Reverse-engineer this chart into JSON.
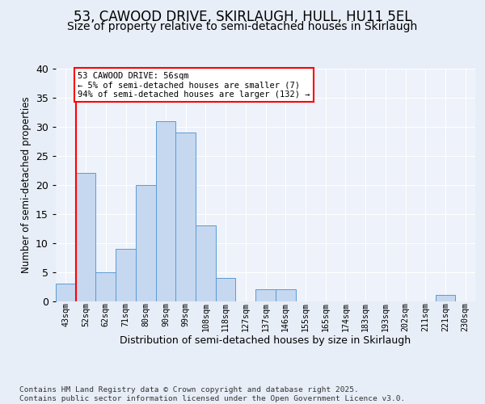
{
  "title1": "53, CAWOOD DRIVE, SKIRLAUGH, HULL, HU11 5EL",
  "title2": "Size of property relative to semi-detached houses in Skirlaugh",
  "xlabel": "Distribution of semi-detached houses by size in Skirlaugh",
  "ylabel": "Number of semi-detached properties",
  "bin_labels": [
    "43sqm",
    "52sqm",
    "62sqm",
    "71sqm",
    "80sqm",
    "90sqm",
    "99sqm",
    "108sqm",
    "118sqm",
    "127sqm",
    "137sqm",
    "146sqm",
    "155sqm",
    "165sqm",
    "174sqm",
    "183sqm",
    "193sqm",
    "202sqm",
    "211sqm",
    "221sqm",
    "230sqm"
  ],
  "values": [
    3,
    22,
    5,
    9,
    20,
    31,
    29,
    13,
    4,
    0,
    2,
    2,
    0,
    0,
    0,
    0,
    0,
    0,
    0,
    1,
    0
  ],
  "bar_color": "#c5d8f0",
  "bar_edge_color": "#5b9bd5",
  "annotation_text": "53 CAWOOD DRIVE: 56sqm\n← 5% of semi-detached houses are smaller (7)\n94% of semi-detached houses are larger (132) →",
  "annotation_box_color": "white",
  "annotation_box_edge": "red",
  "ylim": [
    0,
    40
  ],
  "yticks": [
    0,
    5,
    10,
    15,
    20,
    25,
    30,
    35,
    40
  ],
  "footer": "Contains HM Land Registry data © Crown copyright and database right 2025.\nContains public sector information licensed under the Open Government Licence v3.0.",
  "bg_color": "#e8eef7",
  "plot_bg_color": "#eef2fa",
  "grid_color": "white",
  "title1_fontsize": 12,
  "title2_fontsize": 10
}
